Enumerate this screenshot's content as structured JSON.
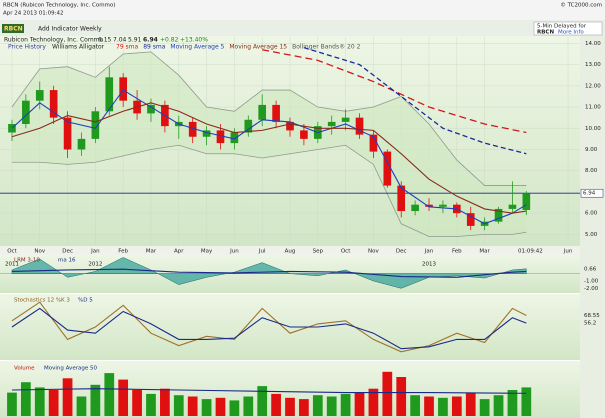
{
  "header": {
    "symbol_line": "RBCN (Rubicon Technology, Inc. Commo)",
    "datetime": "Apr 24 2013 01:09:42",
    "site": "© TC2000.com"
  },
  "toolbar": {
    "symbol": "RBCN",
    "add": "Add Indicator",
    "period": "Weekly",
    "delay": "5-Min Delayed for",
    "delay_symbol": "RBCN",
    "more": "More Info"
  },
  "quote": {
    "name": "Rubicon Technology, Inc. Commo",
    "change": "+0.82",
    "change_pct": "+13.40%"
  },
  "legend": {
    "price": "Price History",
    "alligator": "Williams Alligator"
  },
  "time_label": "01:09:42",
  "chart_data": [
    {
      "type": "candlestick",
      "x": [
        0,
        0.5,
        1,
        1.5,
        2,
        2.5,
        3,
        3.5,
        4,
        4.5,
        5,
        5.5,
        6,
        6.5,
        7,
        7.5,
        8,
        8.5,
        9,
        9.5,
        10,
        10.5,
        11,
        11.5,
        12,
        12.5,
        13,
        13.5,
        14,
        14.5,
        15,
        15.5,
        16,
        16.5,
        17,
        17.5,
        18,
        18.5
      ],
      "open": [
        9.8,
        10.2,
        11.3,
        11.8,
        10.5,
        9.0,
        9.5,
        10.8,
        12.4,
        11.3,
        10.7,
        11.1,
        10.1,
        10.3,
        9.6,
        9.9,
        9.3,
        9.8,
        10.4,
        11.1,
        10.3,
        9.9,
        9.5,
        10.1,
        10.3,
        10.5,
        9.7,
        8.9,
        7.3,
        6.1,
        6.4,
        6.3,
        6.4,
        6.0,
        5.4,
        5.6,
        6.2,
        6.15
      ],
      "high": [
        10.4,
        11.6,
        12.2,
        12.0,
        10.8,
        9.8,
        11.0,
        12.9,
        12.6,
        11.8,
        11.4,
        11.3,
        10.6,
        10.5,
        10.1,
        10.2,
        10.0,
        10.6,
        11.6,
        11.3,
        10.5,
        10.2,
        10.3,
        10.6,
        10.9,
        10.7,
        9.9,
        9.0,
        7.5,
        6.6,
        6.7,
        6.6,
        6.5,
        6.3,
        5.8,
        6.3,
        7.5,
        7.04
      ],
      "low": [
        9.4,
        10.0,
        10.9,
        10.2,
        8.6,
        8.7,
        9.3,
        10.6,
        11.0,
        10.4,
        10.3,
        9.8,
        9.5,
        9.3,
        9.2,
        9.0,
        9.0,
        9.6,
        10.1,
        10.0,
        9.6,
        9.2,
        9.3,
        9.7,
        9.9,
        9.5,
        8.6,
        7.2,
        5.8,
        5.9,
        6.1,
        6.0,
        5.8,
        5.2,
        5.2,
        5.5,
        6.0,
        5.91
      ],
      "close": [
        10.2,
        11.3,
        11.8,
        10.5,
        9.0,
        9.5,
        10.8,
        12.4,
        11.3,
        10.7,
        11.1,
        10.1,
        10.3,
        9.6,
        9.9,
        9.3,
        9.8,
        10.4,
        11.1,
        10.3,
        9.9,
        9.5,
        10.1,
        10.3,
        10.5,
        9.7,
        8.9,
        7.3,
        6.1,
        6.4,
        6.3,
        6.4,
        6.0,
        5.4,
        5.6,
        6.2,
        6.4,
        6.94
      ],
      "up_color": "#1f9a1f",
      "down_color": "#e01010",
      "xlim": [
        -0.43,
        20.43
      ],
      "xticks": [
        {
          "value": 0,
          "label": "Oct"
        },
        {
          "value": 1,
          "label": "Nov"
        },
        {
          "value": 2,
          "label": "Dec"
        },
        {
          "value": 3,
          "label": "Jan"
        },
        {
          "value": 4,
          "label": "Feb"
        },
        {
          "value": 5,
          "label": "Mar"
        },
        {
          "value": 6,
          "label": "Apr"
        },
        {
          "value": 7,
          "label": "May"
        },
        {
          "value": 8,
          "label": "Jun"
        },
        {
          "value": 9,
          "label": "Jul"
        },
        {
          "value": 10,
          "label": "Aug"
        },
        {
          "value": 11,
          "label": "Sep"
        },
        {
          "value": 12,
          "label": "Oct"
        },
        {
          "value": 13,
          "label": "Nov"
        },
        {
          "value": 14,
          "label": "Dec"
        },
        {
          "value": 15,
          "label": "Jan"
        },
        {
          "value": 16,
          "label": "Feb"
        },
        {
          "value": 17,
          "label": "Mar"
        },
        {
          "value": 20,
          "label": "Jun"
        }
      ],
      "year_ticks": [
        {
          "value": 0,
          "label": "2011"
        },
        {
          "value": 3,
          "label": "2012"
        },
        {
          "value": 15,
          "label": "2013"
        }
      ],
      "ylim": [
        4.5,
        14.3
      ],
      "yticks": [
        {
          "value": 5,
          "label": "5.00"
        },
        {
          "value": 6,
          "label": "6.00"
        },
        {
          "value": 8,
          "label": "8.00"
        },
        {
          "value": 9,
          "label": "9.00"
        },
        {
          "value": 10,
          "label": "10.00"
        },
        {
          "value": 11,
          "label": "11.00"
        },
        {
          "value": 12,
          "label": "12.00"
        },
        {
          "value": 13,
          "label": "13.00"
        },
        {
          "value": 14,
          "label": "14.00"
        }
      ],
      "grid": true,
      "last_price_line": true,
      "series": [
        {
          "name": "79 sma",
          "color": "#d01818",
          "dash": "7 4",
          "x": [
            9,
            11,
            13,
            15,
            17,
            18.5
          ],
          "values": [
            13.7,
            13.2,
            12.2,
            11.0,
            10.2,
            9.8
          ]
        },
        {
          "name": "89 sma",
          "color": "#1a2a9a",
          "dash": "5 3",
          "x": [
            10.5,
            12.5,
            14,
            15.5,
            17,
            18.5
          ],
          "values": [
            13.8,
            13.0,
            11.5,
            10.0,
            9.3,
            8.8
          ]
        },
        {
          "name": "Moving Average 5",
          "color": "#1f3fbf",
          "x": [
            0,
            1,
            2,
            3,
            4,
            5,
            6,
            7,
            8,
            9,
            10,
            11,
            12,
            13,
            14,
            15,
            16,
            17,
            18,
            18.5
          ],
          "values": [
            10.0,
            11.2,
            10.3,
            10.0,
            11.8,
            11.0,
            10.2,
            9.8,
            9.5,
            10.4,
            10.3,
            9.8,
            10.2,
            9.6,
            7.2,
            6.3,
            6.2,
            5.5,
            6.0,
            6.4
          ]
        },
        {
          "name": "Moving Average 15",
          "color": "#8b2a1a",
          "x": [
            0,
            1,
            2,
            3,
            4,
            5,
            6,
            7,
            8,
            9,
            10,
            11,
            12,
            13,
            14,
            15,
            16,
            17,
            18,
            18.5
          ],
          "values": [
            9.6,
            10.0,
            10.6,
            10.3,
            10.8,
            11.2,
            10.8,
            10.2,
            9.8,
            9.9,
            10.2,
            10.0,
            10.0,
            9.9,
            8.8,
            7.6,
            6.8,
            6.2,
            6.0,
            6.1
          ]
        }
      ],
      "bands": {
        "name": "Bollinger Bands® 20 2",
        "color": "#8f9a8f",
        "x": [
          0,
          1,
          2,
          3,
          4,
          5,
          6,
          7,
          8,
          9,
          10,
          11,
          12,
          13,
          14,
          15,
          16,
          17,
          18,
          18.5
        ],
        "upper": [
          11.0,
          12.8,
          12.9,
          12.4,
          13.5,
          13.6,
          12.5,
          11.0,
          10.8,
          11.8,
          11.8,
          11.0,
          10.8,
          11.0,
          11.5,
          10.2,
          8.5,
          7.3,
          7.3,
          7.3
        ],
        "lower": [
          8.4,
          8.4,
          8.3,
          8.4,
          8.7,
          9.0,
          9.2,
          8.8,
          8.8,
          8.6,
          8.8,
          9.0,
          9.2,
          8.3,
          5.5,
          4.9,
          4.9,
          5.0,
          5.0,
          5.1
        ]
      }
    },
    {
      "type": "area",
      "title": "LRM 3-10",
      "color": "#3aa39a",
      "x": [
        0,
        1,
        2,
        3,
        4,
        5,
        6,
        7,
        8,
        9,
        10,
        11,
        12,
        13,
        14,
        15,
        16,
        17,
        18,
        18.5
      ],
      "values": [
        0.5,
        2.0,
        -0.5,
        0.3,
        2.2,
        0.5,
        -1.5,
        -0.5,
        0.2,
        1.5,
        0,
        -0.3,
        0.5,
        -1.0,
        -2.0,
        -0.5,
        -0.3,
        -0.6,
        0.5,
        0.66
      ],
      "xlim": [
        -0.43,
        20.43
      ],
      "ylim": [
        -2.5,
        2.4
      ],
      "yticks": [
        {
          "value": -1,
          "label": "-1.00"
        },
        {
          "value": -2,
          "label": "-2.00"
        }
      ],
      "series": [
        {
          "name": "ma 16",
          "color": "#1a2a8a",
          "x": [
            0,
            2,
            4,
            6,
            8,
            10,
            12,
            14,
            16,
            18,
            18.5
          ],
          "values": [
            0.3,
            0.5,
            0.6,
            0.2,
            0.1,
            0.3,
            0.2,
            -0.4,
            -0.5,
            0.2,
            0.3
          ]
        }
      ]
    },
    {
      "type": "line",
      "title": "Stochastics 12 %K 3",
      "xlim": [
        -0.43,
        20.43
      ],
      "ylim": [
        0,
        100
      ],
      "series": [
        {
          "color": "#a0702a",
          "x": [
            0,
            1,
            2,
            3,
            4,
            5,
            6,
            7,
            8,
            9,
            10,
            11,
            12,
            13,
            14,
            15,
            16,
            17,
            18,
            18.5
          ],
          "values": [
            60,
            90,
            30,
            50,
            85,
            40,
            20,
            35,
            30,
            80,
            40,
            55,
            60,
            30,
            10,
            20,
            40,
            25,
            80,
            68.55
          ]
        },
        {
          "name": "%D 5",
          "color": "#1a2a8a",
          "x": [
            0,
            1,
            2,
            3,
            4,
            5,
            6,
            7,
            8,
            9,
            10,
            11,
            12,
            13,
            14,
            15,
            16,
            17,
            18,
            18.5
          ],
          "values": [
            50,
            80,
            45,
            40,
            75,
            55,
            30,
            30,
            32,
            65,
            50,
            50,
            55,
            40,
            15,
            18,
            30,
            30,
            65,
            56.2
          ]
        }
      ]
    },
    {
      "type": "bar",
      "title": "Volume",
      "xlim": [
        -0.43,
        20.43
      ],
      "ylim": [
        0,
        4000000
      ],
      "x": [
        0,
        0.5,
        1,
        1.5,
        2,
        2.5,
        3,
        3.5,
        4,
        4.5,
        5,
        5.5,
        6,
        6.5,
        7,
        7.5,
        8,
        8.5,
        9,
        9.5,
        10,
        10.5,
        11,
        11.5,
        12,
        12.5,
        13,
        13.5,
        14,
        14.5,
        15,
        15.5,
        16,
        16.5,
        17,
        17.5,
        18,
        18.5
      ],
      "values": [
        1800000,
        2600000,
        2200000,
        2000000,
        2900000,
        1500000,
        2400000,
        3300000,
        2800000,
        2000000,
        1700000,
        2100000,
        1600000,
        1500000,
        1300000,
        1400000,
        1200000,
        1500000,
        2300000,
        1700000,
        1400000,
        1300000,
        1600000,
        1500000,
        1700000,
        1800000,
        2100000,
        3400000,
        3000000,
        1600000,
        1500000,
        1400000,
        1500000,
        1800000,
        1300000,
        1600000,
        2000000,
        2200000
      ],
      "series": [
        {
          "name": "Moving Average 50",
          "color": "#1a2a8a",
          "x": [
            0,
            3,
            6,
            9,
            12,
            15,
            18,
            18.5
          ],
          "values": [
            2000000,
            2100000,
            2000000,
            1900000,
            1800000,
            1800000,
            1750000,
            1750000
          ]
        }
      ]
    }
  ]
}
